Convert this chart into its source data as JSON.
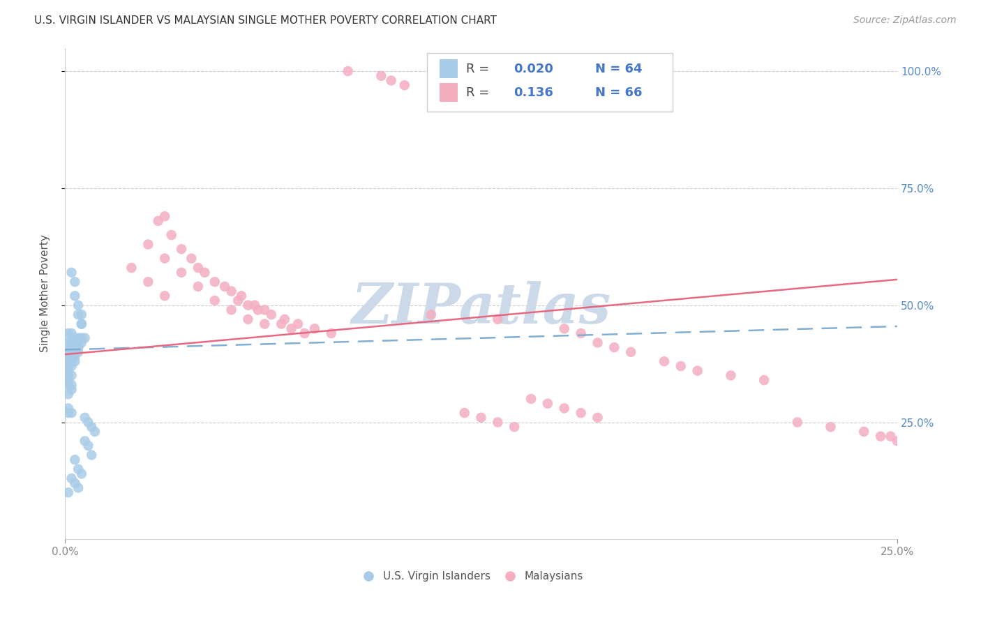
{
  "title": "U.S. VIRGIN ISLANDER VS MALAYSIAN SINGLE MOTHER POVERTY CORRELATION CHART",
  "source": "Source: ZipAtlas.com",
  "ylabel": "Single Mother Poverty",
  "yticks": [
    "25.0%",
    "50.0%",
    "75.0%",
    "100.0%"
  ],
  "ytick_vals": [
    0.25,
    0.5,
    0.75,
    1.0
  ],
  "xmin": 0.0,
  "xmax": 0.25,
  "ymin": 0.0,
  "ymax": 1.05,
  "blue_color": "#a8cce8",
  "pink_color": "#f4aec0",
  "blue_line_color": "#7aaad0",
  "pink_line_color": "#e8607a",
  "watermark_color": "#ccd9e8",
  "label1": "U.S. Virgin Islanders",
  "label2": "Malaysians",
  "vi_x": [
    0.002,
    0.003,
    0.003,
    0.004,
    0.004,
    0.005,
    0.005,
    0.005,
    0.001,
    0.002,
    0.003,
    0.004,
    0.005,
    0.006,
    0.002,
    0.003,
    0.004,
    0.005,
    0.001,
    0.002,
    0.003,
    0.004,
    0.002,
    0.003,
    0.004,
    0.001,
    0.002,
    0.003,
    0.004,
    0.001,
    0.002,
    0.003,
    0.001,
    0.002,
    0.003,
    0.001,
    0.002,
    0.001,
    0.002,
    0.001,
    0.001,
    0.002,
    0.001,
    0.002,
    0.001,
    0.002,
    0.001,
    0.001,
    0.002,
    0.001,
    0.006,
    0.007,
    0.008,
    0.009,
    0.006,
    0.007,
    0.008,
    0.003,
    0.004,
    0.005,
    0.002,
    0.003,
    0.004,
    0.001
  ],
  "vi_y": [
    0.57,
    0.55,
    0.52,
    0.5,
    0.48,
    0.48,
    0.46,
    0.46,
    0.44,
    0.44,
    0.43,
    0.43,
    0.43,
    0.43,
    0.42,
    0.42,
    0.42,
    0.42,
    0.42,
    0.42,
    0.41,
    0.41,
    0.41,
    0.41,
    0.41,
    0.4,
    0.4,
    0.4,
    0.4,
    0.4,
    0.39,
    0.39,
    0.39,
    0.39,
    0.38,
    0.38,
    0.38,
    0.37,
    0.37,
    0.36,
    0.35,
    0.35,
    0.34,
    0.33,
    0.33,
    0.32,
    0.31,
    0.28,
    0.27,
    0.27,
    0.26,
    0.25,
    0.24,
    0.23,
    0.21,
    0.2,
    0.18,
    0.17,
    0.15,
    0.14,
    0.13,
    0.12,
    0.11,
    0.1
  ],
  "my_x": [
    0.085,
    0.095,
    0.098,
    0.102,
    0.03,
    0.035,
    0.04,
    0.045,
    0.05,
    0.052,
    0.055,
    0.058,
    0.06,
    0.028,
    0.032,
    0.038,
    0.042,
    0.048,
    0.053,
    0.057,
    0.062,
    0.066,
    0.025,
    0.03,
    0.035,
    0.04,
    0.045,
    0.05,
    0.055,
    0.06,
    0.02,
    0.025,
    0.03,
    0.07,
    0.075,
    0.08,
    0.11,
    0.13,
    0.15,
    0.155,
    0.16,
    0.165,
    0.17,
    0.18,
    0.185,
    0.19,
    0.2,
    0.21,
    0.14,
    0.145,
    0.15,
    0.155,
    0.16,
    0.12,
    0.125,
    0.13,
    0.135,
    0.22,
    0.23,
    0.24,
    0.245,
    0.248,
    0.25,
    0.065,
    0.068,
    0.072
  ],
  "my_y": [
    1.0,
    0.99,
    0.98,
    0.97,
    0.69,
    0.62,
    0.58,
    0.55,
    0.53,
    0.51,
    0.5,
    0.49,
    0.49,
    0.68,
    0.65,
    0.6,
    0.57,
    0.54,
    0.52,
    0.5,
    0.48,
    0.47,
    0.63,
    0.6,
    0.57,
    0.54,
    0.51,
    0.49,
    0.47,
    0.46,
    0.58,
    0.55,
    0.52,
    0.46,
    0.45,
    0.44,
    0.48,
    0.47,
    0.45,
    0.44,
    0.42,
    0.41,
    0.4,
    0.38,
    0.37,
    0.36,
    0.35,
    0.34,
    0.3,
    0.29,
    0.28,
    0.27,
    0.26,
    0.27,
    0.26,
    0.25,
    0.24,
    0.25,
    0.24,
    0.23,
    0.22,
    0.22,
    0.21,
    0.46,
    0.45,
    0.44
  ],
  "vi_trend": [
    0.0,
    0.25,
    0.405,
    0.455
  ],
  "my_trend": [
    0.0,
    0.25,
    0.395,
    0.555
  ],
  "leg_r1": "0.020",
  "leg_n1": "64",
  "leg_r2": "0.136",
  "leg_n2": "66"
}
